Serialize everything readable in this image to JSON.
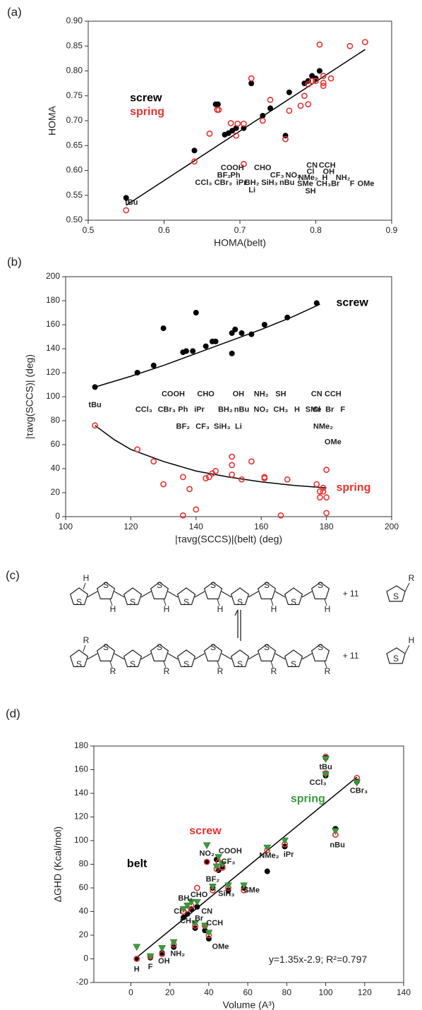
{
  "chart_data": [
    {
      "type": "scatter",
      "panel_label": "(a)",
      "xlabel": "HOMA(belt)",
      "ylabel": "HOMA",
      "xlim": [
        0.5,
        0.9
      ],
      "xticks": [
        0.5,
        0.6,
        0.7,
        0.8,
        0.9
      ],
      "ylim": [
        0.5,
        0.9
      ],
      "yticks": [
        {
          "value": 0.5,
          "label": "0.50"
        },
        0.55,
        {
          "value": 0.6,
          "label": "0.60"
        },
        0.65,
        {
          "value": 0.7,
          "label": "0.70"
        },
        0.75,
        {
          "value": 0.8,
          "label": "0.80"
        },
        0.85,
        {
          "value": 0.9,
          "label": "0.90"
        }
      ],
      "series": [
        {
          "name": "screw",
          "color": "#000000",
          "marker": "circle",
          "x": [
            0.55,
            0.64,
            0.668,
            0.671,
            0.68,
            0.685,
            0.69,
            0.695,
            0.705,
            0.715,
            0.73,
            0.74,
            0.76,
            0.765,
            0.785,
            0.79,
            0.795,
            0.8,
            0.805
          ],
          "values": [
            0.545,
            0.64,
            0.733,
            0.733,
            0.672,
            0.675,
            0.68,
            0.685,
            0.685,
            0.775,
            0.71,
            0.725,
            0.67,
            0.757,
            0.775,
            0.78,
            0.79,
            0.785,
            0.8
          ]
        },
        {
          "name": "spring",
          "color": "#e8322e",
          "marker": "open-circle",
          "x": [
            0.55,
            0.64,
            0.66,
            0.67,
            0.672,
            0.688,
            0.695,
            0.697,
            0.705,
            0.705,
            0.715,
            0.73,
            0.74,
            0.76,
            0.765,
            0.78,
            0.785,
            0.79,
            0.79,
            0.795,
            0.8,
            0.805,
            0.81,
            0.81,
            0.81,
            0.82,
            0.845,
            0.865
          ],
          "values": [
            0.52,
            0.618,
            0.674,
            0.722,
            0.722,
            0.695,
            0.67,
            0.694,
            0.694,
            0.613,
            0.785,
            0.7,
            0.742,
            0.663,
            0.72,
            0.73,
            0.75,
            0.773,
            0.733,
            0.78,
            0.78,
            0.853,
            0.776,
            0.77,
            0.79,
            0.785,
            0.85,
            0.858
          ]
        }
      ],
      "trend_lines": [
        {
          "x": [
            0.55,
            0.865
          ],
          "values": [
            0.53,
            0.843
          ]
        }
      ],
      "annotations": [
        "tBu",
        "CCl₃",
        "CBr₃",
        "BF₂",
        "COOH",
        "Ph",
        "iPr",
        "BH₂",
        "Li",
        "CHO",
        "CF₃",
        "SiH₃",
        "nBu",
        "NO₂",
        "CN",
        "Cl",
        "NMe₂",
        "SMe",
        "SH",
        "CCH",
        "OH",
        "H",
        "CH₃Br",
        "NH₂",
        "F",
        "OMe"
      ]
    },
    {
      "type": "scatter",
      "panel_label": "(b)",
      "xlabel": "|τavg(SCCS)|(belt)   (deg)",
      "ylabel": "|τavg(SCCS)|   (deg)",
      "xlim": [
        100,
        200
      ],
      "xticks": [
        100,
        120,
        140,
        160,
        180,
        200
      ],
      "ylim": [
        0,
        200
      ],
      "yticks": [
        0,
        20,
        40,
        60,
        80,
        100,
        120,
        140,
        160,
        180,
        200
      ],
      "series": [
        {
          "name": "screw",
          "color": "#000000",
          "marker": "circle",
          "x": [
            109,
            122,
            127,
            130,
            136,
            137,
            139,
            140,
            143,
            145,
            146,
            151,
            151,
            152,
            154,
            157,
            161,
            168,
            177
          ],
          "values": [
            108,
            120,
            126,
            157,
            137,
            138,
            138,
            170,
            142,
            146,
            146,
            153,
            136,
            156,
            153,
            152,
            160,
            166,
            178
          ]
        },
        {
          "name": "spring",
          "color": "#e8322e",
          "marker": "open-circle",
          "x": [
            109,
            122,
            127,
            130,
            136,
            136,
            138,
            140,
            143,
            144,
            145,
            146,
            151,
            151,
            151,
            154,
            157,
            161,
            161,
            166,
            168,
            177,
            178,
            178,
            179,
            180,
            180,
            180,
            179
          ],
          "values": [
            76,
            56,
            46,
            27,
            1,
            33,
            23,
            6,
            32,
            33,
            36,
            38,
            50,
            43,
            35,
            31,
            46,
            33,
            32,
            1,
            31,
            27,
            21,
            16,
            24,
            39,
            16,
            3,
            21
          ]
        }
      ],
      "trend_lines": [
        {
          "x": [
            109,
            120,
            130,
            140,
            150,
            160,
            170,
            178
          ],
          "values": [
            108,
            117,
            126,
            136,
            146,
            156,
            167,
            177
          ]
        },
        {
          "x": [
            109,
            115,
            120,
            130,
            140,
            150,
            160,
            170,
            180
          ],
          "values": [
            76,
            64,
            56,
            46,
            38,
            33,
            29,
            26,
            24
          ]
        }
      ],
      "annotations": [
        "tBu",
        "CCl₃",
        "CBr₃",
        "COOH",
        "BF₂",
        "Ph",
        "CHO",
        "iPr",
        "CF₃",
        "SiH₃",
        "BH₂",
        "OH",
        "nBu",
        "Li",
        "NH₂",
        "SH",
        "NO₂",
        "CH₃",
        "H",
        "SMe",
        "CN",
        "CCH",
        "Cl",
        "Br",
        "F",
        "NMe₂",
        "OMe"
      ]
    },
    {
      "type": "scatter",
      "panel_label": "(d)",
      "xlabel": "Volume  (A³)",
      "ylabel": "ΔGHD  (Kcal/mol)",
      "xlim": [
        -19,
        140
      ],
      "xticks": [
        0,
        20,
        40,
        60,
        80,
        100,
        120,
        140
      ],
      "ylim": [
        -20,
        180
      ],
      "yticks": [
        -20,
        0,
        20,
        40,
        60,
        80,
        100,
        120,
        140,
        160,
        180
      ],
      "x": [
        3,
        10,
        16,
        22,
        27,
        29,
        31,
        33,
        34,
        38,
        39,
        40,
        42,
        44,
        45,
        47,
        50,
        58,
        70,
        79,
        100,
        100,
        105,
        116
      ],
      "series": [
        {
          "name": "belt",
          "color": "#000000",
          "marker": "circle",
          "values": [
            0,
            1,
            5,
            10,
            35,
            38,
            42,
            26,
            44,
            24,
            82,
            17,
            60,
            84,
            75,
            78,
            58,
            60,
            74,
            95,
            170,
            155,
            110,
            150
          ]
        },
        {
          "name": "screw",
          "color": "#e8322e",
          "marker": "open-circle",
          "values": [
            0,
            2,
            4,
            12,
            40,
            42,
            45,
            28,
            60,
            28,
            82,
            20,
            58,
            76,
            82,
            77,
            60,
            58,
            92,
            97,
            171,
            157,
            105,
            153
          ]
        },
        {
          "name": "spring",
          "color": "#3a9a3a",
          "marker": "triangle",
          "values": [
            10,
            2,
            9,
            14,
            42,
            45,
            48,
            30,
            48,
            28,
            96,
            22,
            61,
            78,
            86,
            80,
            62,
            62,
            94,
            100,
            169,
            156,
            108,
            149
          ]
        }
      ],
      "trend_lines": [
        {
          "x": [
            3,
            116
          ],
          "values": [
            1.15,
            153.7
          ]
        }
      ],
      "equation": "y=1.35x-2.9; R²=0.797",
      "annotations": [
        "H",
        "F",
        "OH",
        "NH₂",
        "Cl",
        "CH₃",
        "Br",
        "CN",
        "CCH",
        "OMe",
        "BH₂",
        "CHO",
        "BF₂",
        "SiH₃",
        "NO₂",
        "COOH",
        "CF₃",
        "SMe",
        "NMe₂",
        "iPr",
        "nBu",
        "CCl₃",
        "tBu",
        "CBr₃"
      ]
    }
  ],
  "diagram": {
    "panel_label": "(c)",
    "ring_atom": "S",
    "top_substituent": "H",
    "bottom_substituent": "R",
    "reagent": "+ 11"
  }
}
